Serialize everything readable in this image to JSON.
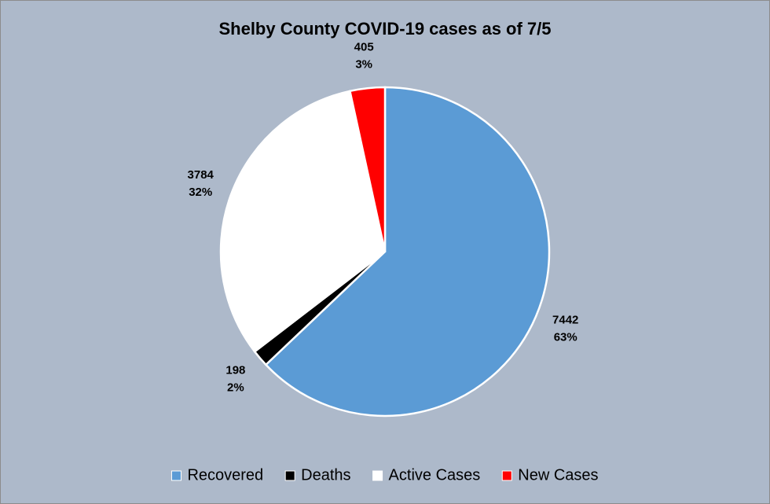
{
  "chart_data": {
    "type": "pie",
    "title": "Shelby County COVID-19 cases as of 7/5",
    "categories": [
      "Recovered",
      "Deaths",
      "Active Cases",
      "New Cases"
    ],
    "values": [
      7442,
      198,
      3784,
      405
    ],
    "percent_labels": [
      "63%",
      "2%",
      "32%",
      "3%"
    ],
    "colors": [
      "#5b9bd5",
      "#000000",
      "#ffffff",
      "#ff0000"
    ],
    "legend": "bottom"
  }
}
